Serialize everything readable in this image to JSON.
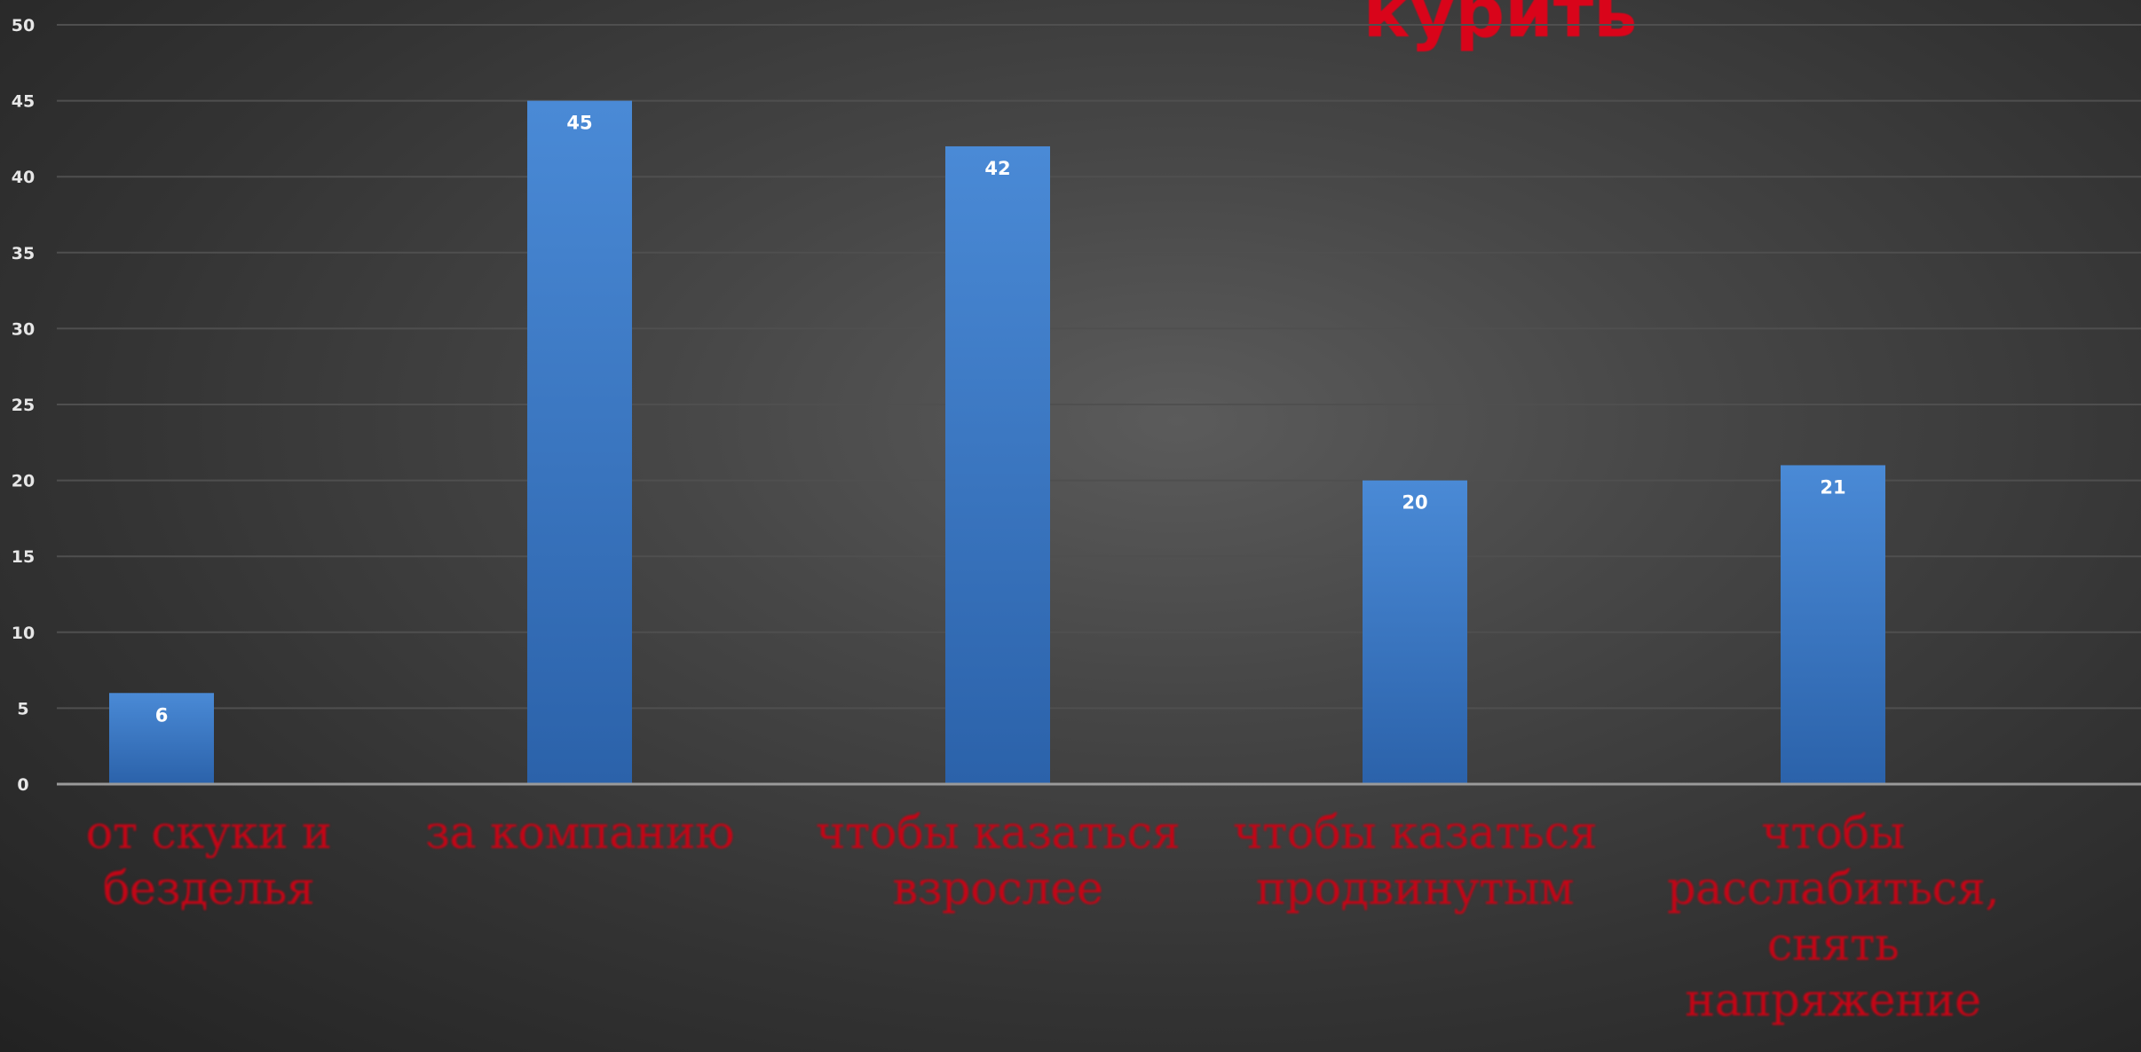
{
  "chart_data": {
    "type": "bar",
    "title": "курить",
    "categories": [
      "от скуки и\nбезделья",
      "за компанию",
      "чтобы казаться\nвзрослее",
      "чтобы казаться\nпродвинутым",
      "чтобы\nрасслабиться,\nснять\nнапряжение"
    ],
    "values": [
      6,
      45,
      42,
      20,
      21
    ],
    "data_labels": [
      "6",
      "45",
      "42",
      "20",
      "21"
    ],
    "ylim": [
      0,
      50
    ],
    "yticks": [
      "0",
      "5",
      "10",
      "15",
      "20",
      "25",
      "30",
      "35",
      "40",
      "45",
      "50"
    ],
    "xlabel": "",
    "ylabel": "",
    "grid": true,
    "legend": "none",
    "colors": {
      "bar_top": "#4a8ad6",
      "bar_bottom": "#2b62aa",
      "category_label": "#c40516",
      "title": "#d9041a",
      "tick_label": "#e6e6e6",
      "data_label": "#ffffff",
      "gridline": "#4f4f4f",
      "axis": "#9a9a9a"
    }
  }
}
